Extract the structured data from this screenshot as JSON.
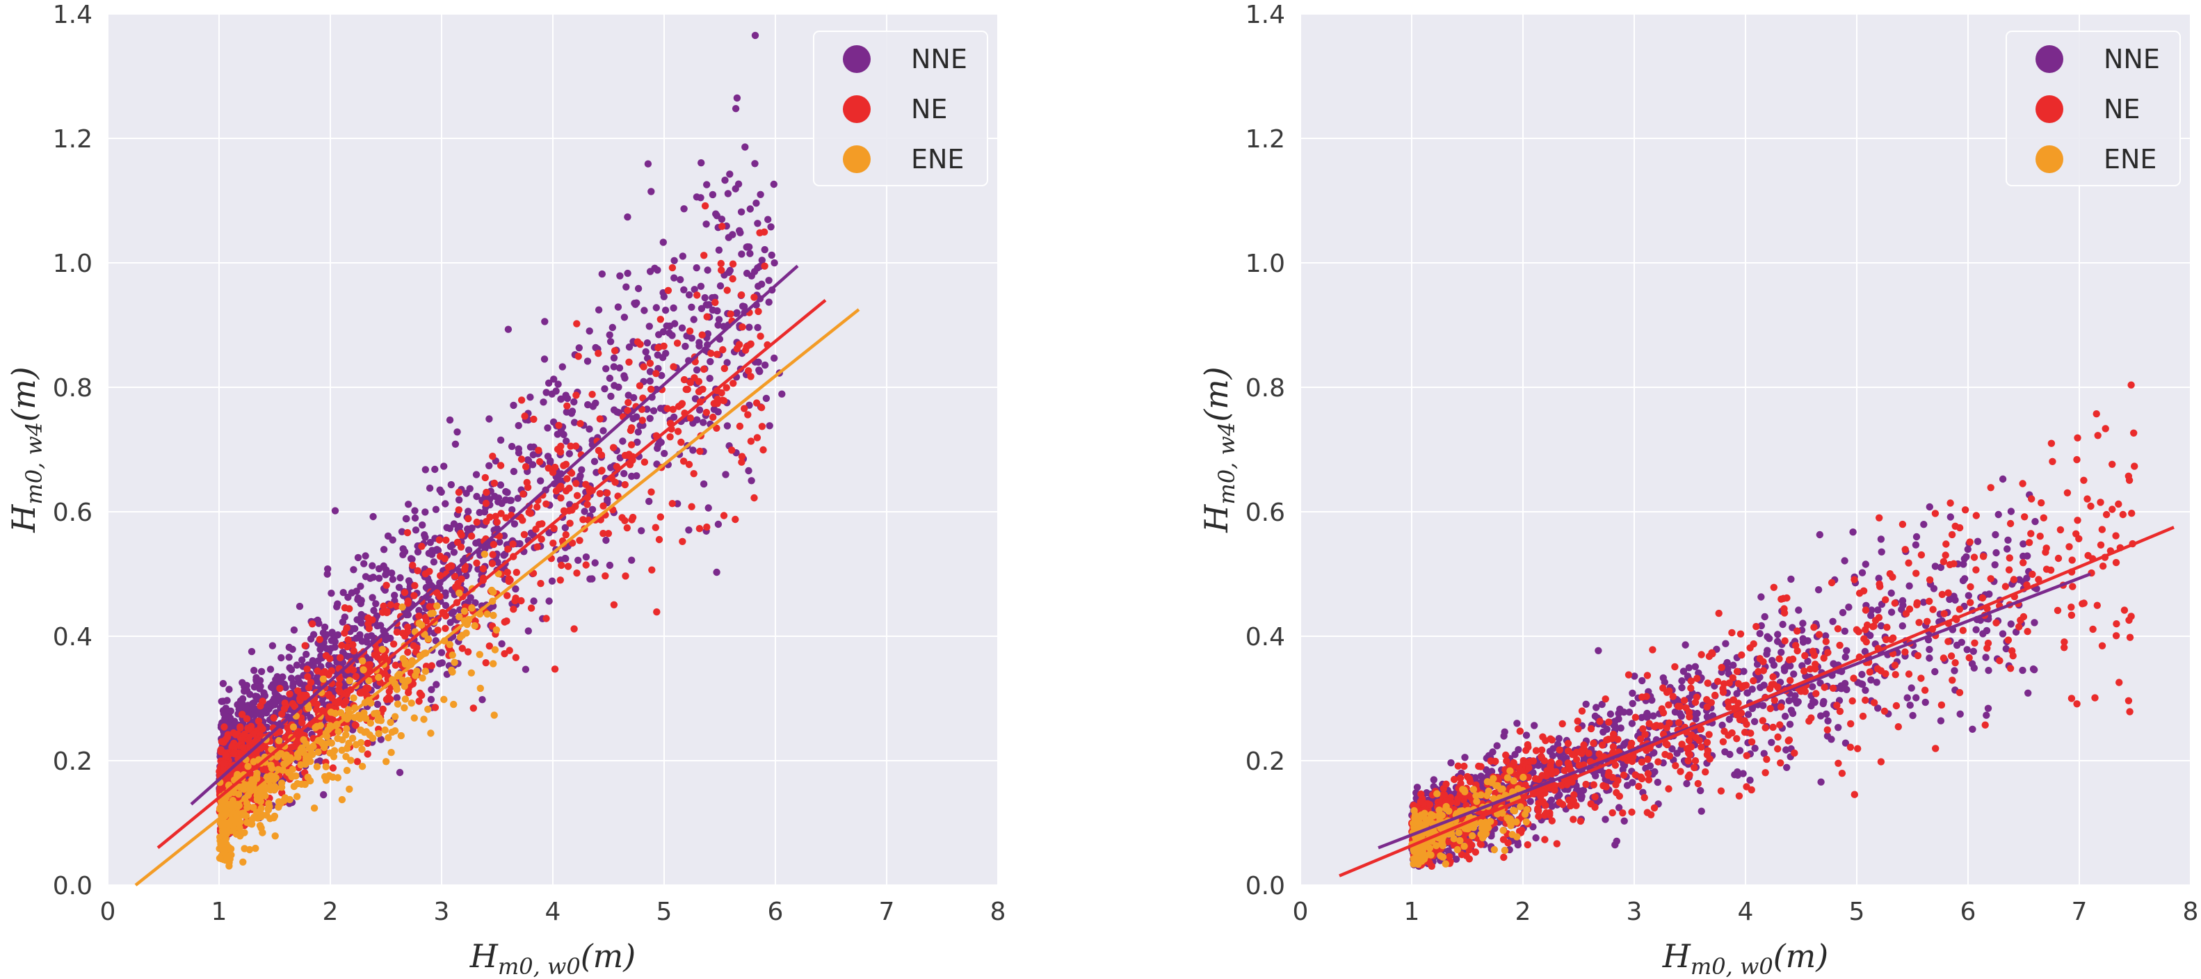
{
  "chart_data": [
    {
      "type": "scatter",
      "xlabel": {
        "main": "H",
        "sub": "m0, w0",
        "unit": "(m)"
      },
      "ylabel": {
        "main": "H",
        "sub": "m0, w4",
        "unit": "(m)"
      },
      "xlim": [
        0,
        8
      ],
      "ylim": [
        0,
        1.4
      ],
      "xticks": [
        0,
        1,
        2,
        3,
        4,
        5,
        6,
        7,
        8
      ],
      "yticks": [
        0.0,
        0.2,
        0.4,
        0.6,
        0.8,
        1.0,
        1.2,
        1.4
      ],
      "grid": true,
      "legend_position": "top-right",
      "series": [
        {
          "name": "NNE",
          "color": "#7b2a8c",
          "cloud": {
            "x_range": [
              1.0,
              6.0
            ],
            "slope": 0.16,
            "intercept": 0.02,
            "spread": 0.055,
            "count": 1600
          },
          "fit": {
            "x": [
              0.75,
              6.2
            ],
            "y": [
              0.13,
              0.995
            ]
          }
        },
        {
          "name": "NE",
          "color": "#ea2b2b",
          "cloud": {
            "x_range": [
              1.0,
              5.9
            ],
            "slope": 0.147,
            "intercept": 0.0,
            "spread": 0.045,
            "count": 1000
          },
          "fit": {
            "x": [
              0.45,
              6.45
            ],
            "y": [
              0.06,
              0.94
            ]
          }
        },
        {
          "name": "ENE",
          "color": "#f39c26",
          "cloud": {
            "x_range": [
              1.0,
              3.5
            ],
            "slope": 0.14,
            "intercept": -0.05,
            "spread": 0.035,
            "count": 450
          },
          "fit": {
            "x": [
              0.25,
              6.75
            ],
            "y": [
              0.0,
              0.925
            ]
          }
        }
      ]
    },
    {
      "type": "scatter",
      "xlabel": {
        "main": "H",
        "sub": "m0, w0",
        "unit": "(m)"
      },
      "ylabel": {
        "main": "H",
        "sub": "m0, w4",
        "unit": "(m)"
      },
      "xlim": [
        0,
        8
      ],
      "ylim": [
        0,
        1.4
      ],
      "xticks": [
        0,
        1,
        2,
        3,
        4,
        5,
        6,
        7,
        8
      ],
      "yticks": [
        0.0,
        0.2,
        0.4,
        0.6,
        0.8,
        1.0,
        1.2,
        1.4
      ],
      "grid": true,
      "legend_position": "top-right",
      "series": [
        {
          "name": "NNE",
          "color": "#7b2a8c",
          "cloud": {
            "x_range": [
              1.0,
              6.6
            ],
            "slope": 0.072,
            "intercept": 0.01,
            "spread": 0.032,
            "count": 1300
          },
          "fit": {
            "x": [
              0.7,
              7.1
            ],
            "y": [
              0.06,
              0.5
            ]
          }
        },
        {
          "name": "NE",
          "color": "#ea2b2b",
          "cloud": {
            "x_range": [
              1.0,
              7.5
            ],
            "slope": 0.074,
            "intercept": 0.0,
            "spread": 0.035,
            "count": 1000
          },
          "fit": {
            "x": [
              0.35,
              7.85
            ],
            "y": [
              0.015,
              0.575
            ]
          }
        },
        {
          "name": "ENE",
          "color": "#f39c26",
          "cloud": {
            "x_range": [
              1.0,
              2.0
            ],
            "slope": 0.07,
            "intercept": 0.0,
            "spread": 0.025,
            "count": 250
          },
          "fit": null
        }
      ]
    }
  ]
}
